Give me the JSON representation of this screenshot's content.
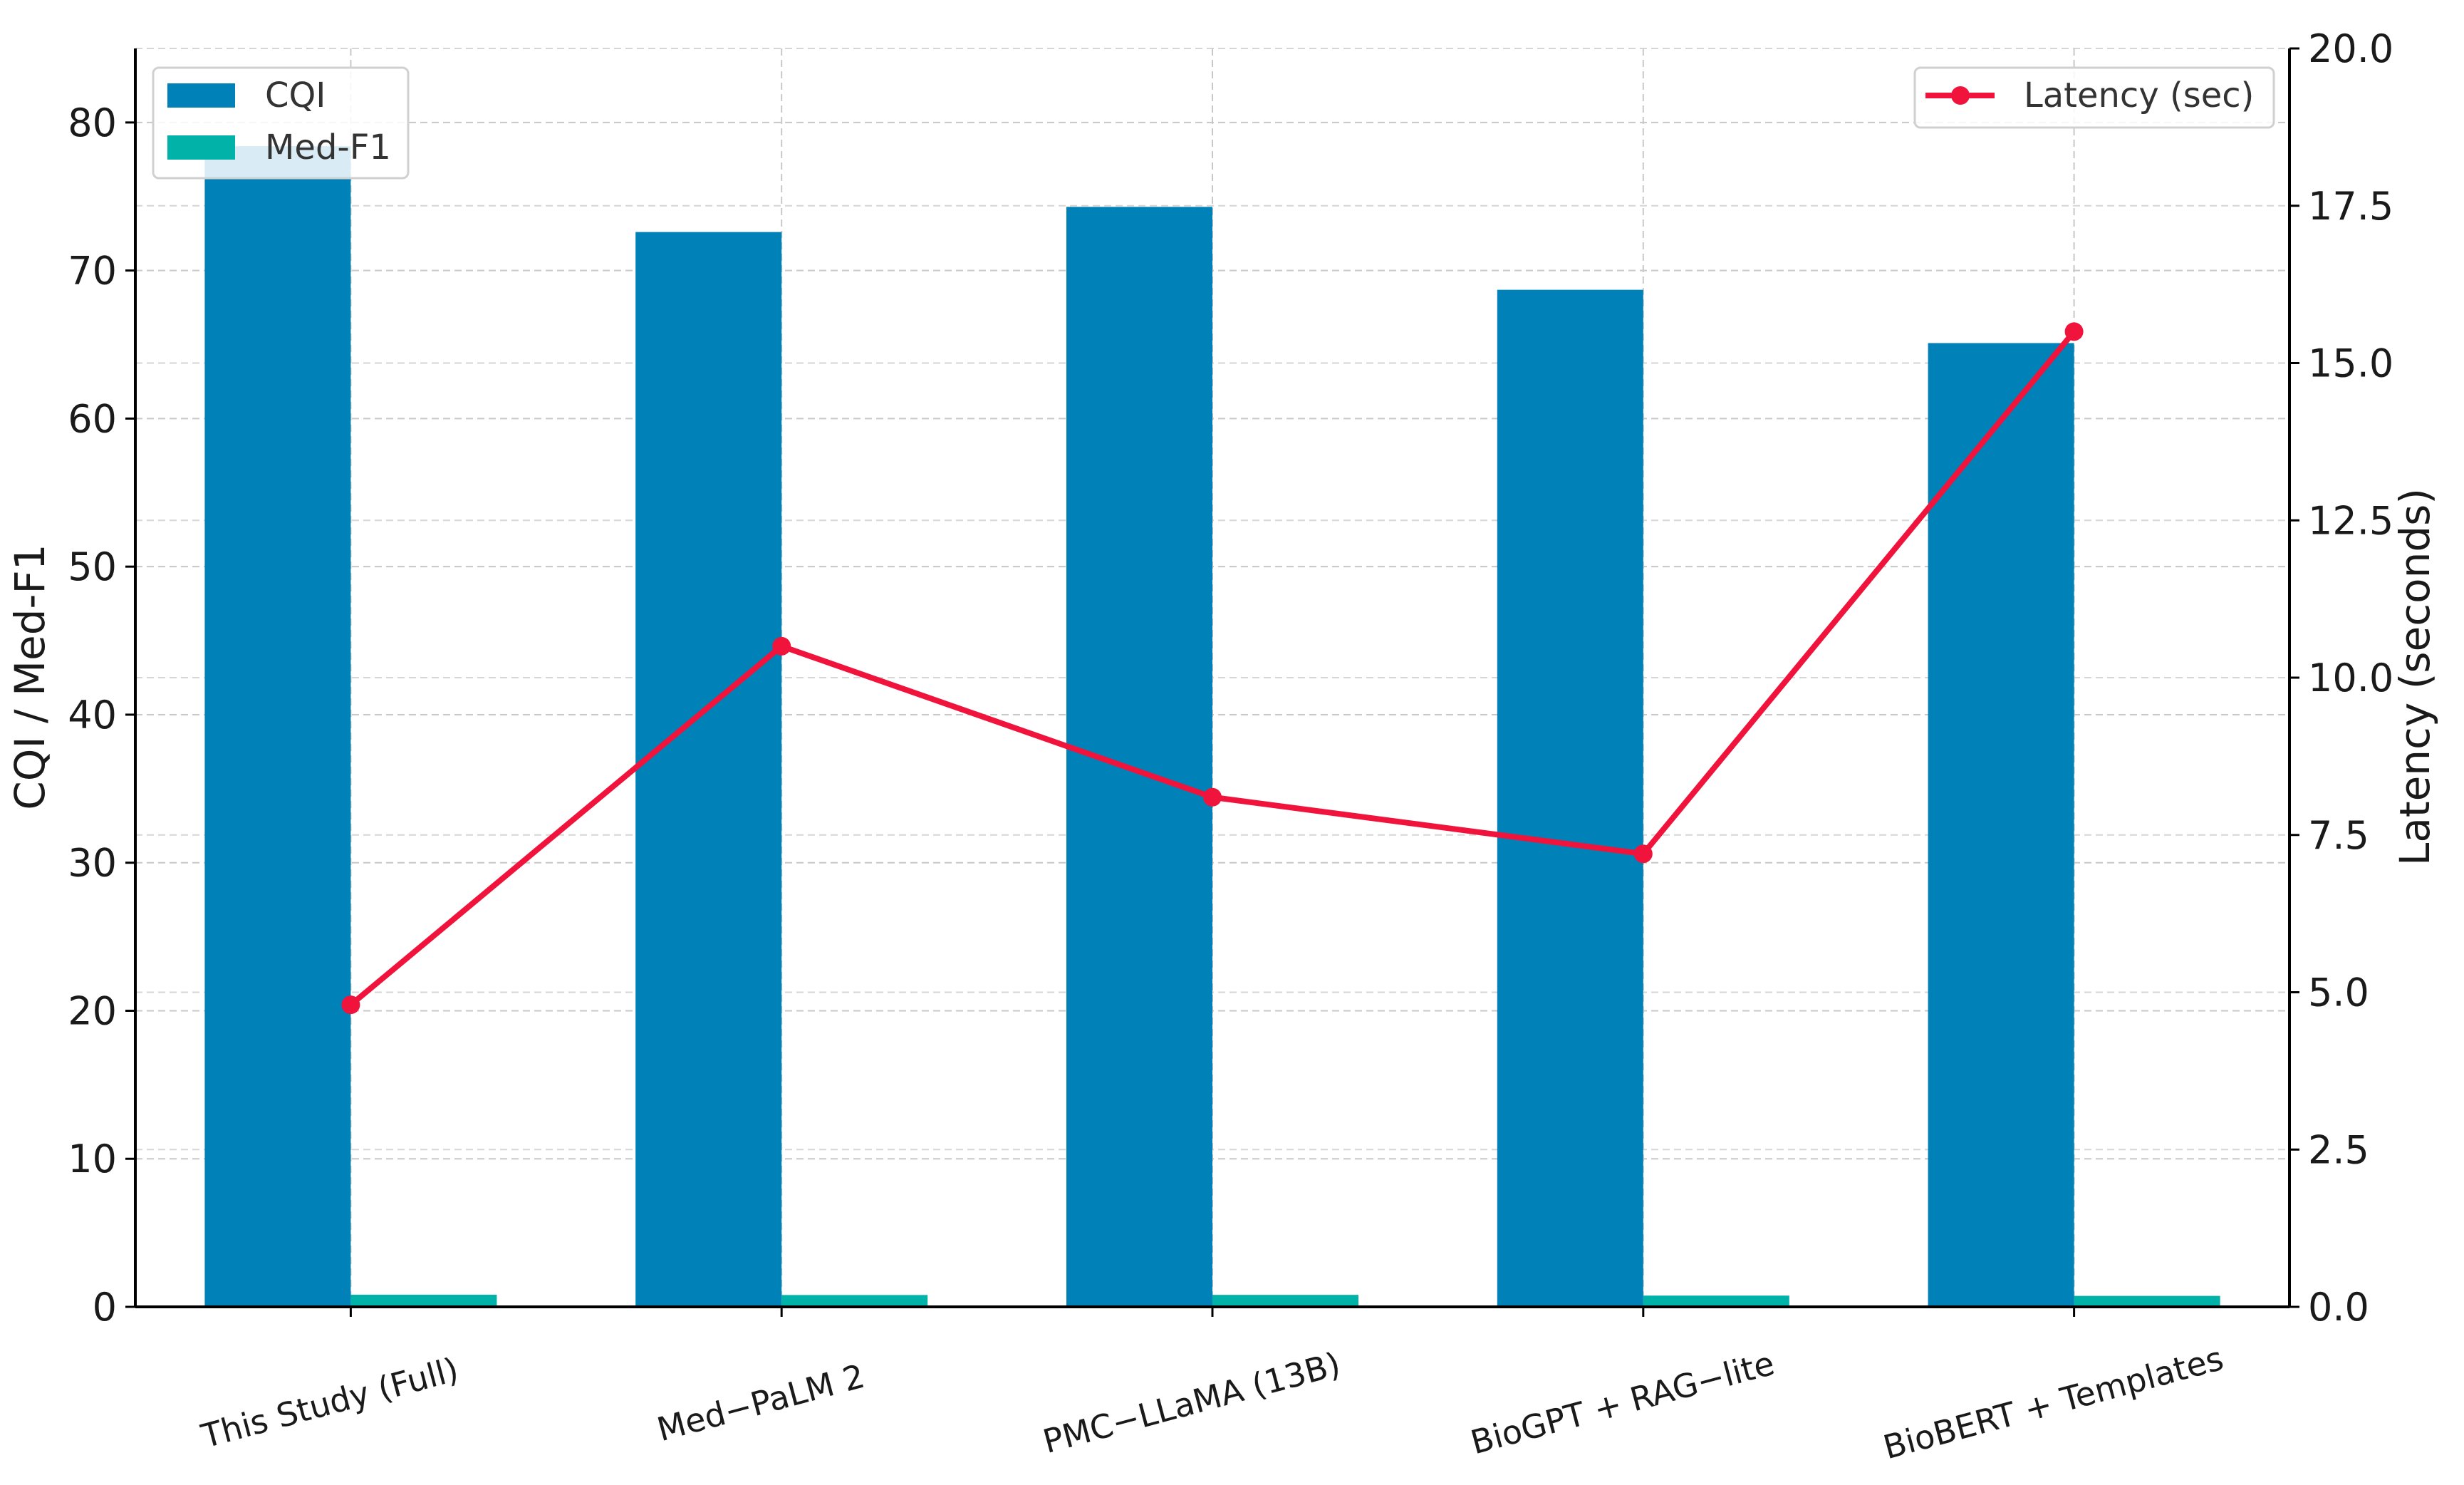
{
  "chart_data": {
    "type": "bar",
    "categories": [
      "This Study (Full)",
      "Med−PaLM 2",
      "PMC−LLaMA (13B)",
      "BioGPT + RAG−lite",
      "BioBERT + Templates"
    ],
    "series": [
      {
        "name": "CQI",
        "axis": "left",
        "kind": "bar",
        "color": "#0081b8",
        "values": [
          78.4,
          72.6,
          74.3,
          68.7,
          65.1
        ]
      },
      {
        "name": "Med-F1",
        "axis": "left",
        "kind": "bar",
        "color": "#00b2a8",
        "values": [
          0.82,
          0.8,
          0.81,
          0.76,
          0.74
        ]
      },
      {
        "name": "Latency (sec)",
        "axis": "right",
        "kind": "line",
        "color": "#f0143c",
        "values": [
          4.8,
          10.5,
          8.1,
          7.2,
          15.5
        ]
      }
    ],
    "ylabel": "CQI / Med-F1",
    "ylim": [
      0,
      85
    ],
    "yticks": [
      0,
      10,
      20,
      30,
      40,
      50,
      60,
      70,
      80
    ],
    "y2label": "Latency (seconds)",
    "y2lim": [
      0,
      20
    ],
    "y2ticks": [
      "0.0",
      "2.5",
      "5.0",
      "7.5",
      "10.0",
      "12.5",
      "15.0",
      "17.5",
      "20.0"
    ],
    "grid": true,
    "legend_left": "top-left",
    "legend_right": "top-right"
  }
}
